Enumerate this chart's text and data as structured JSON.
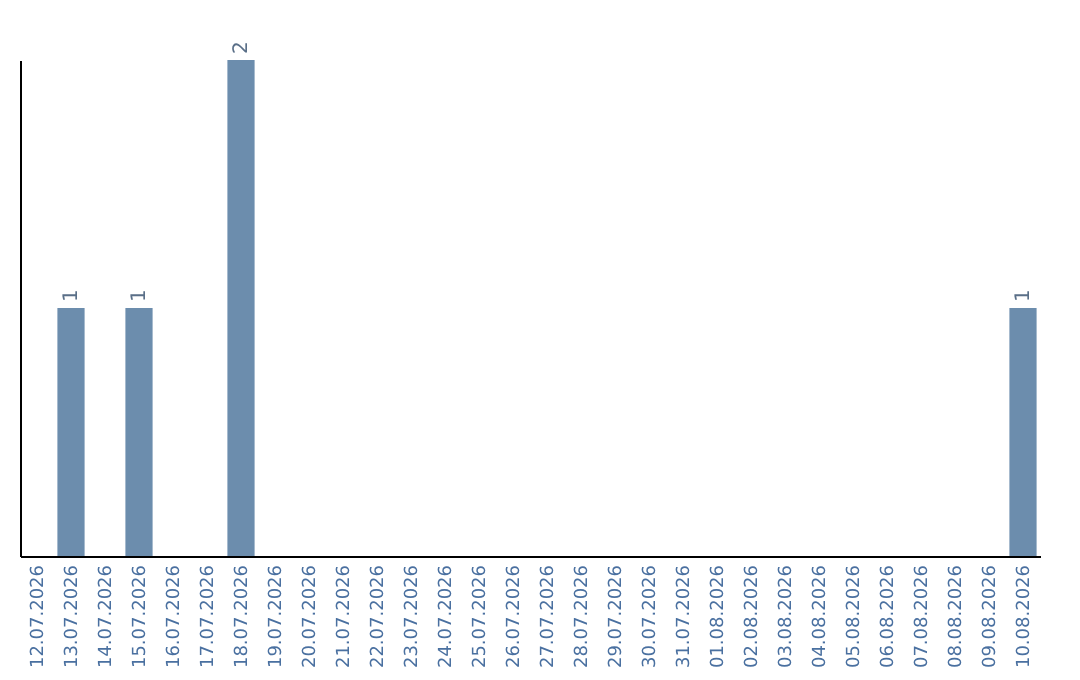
{
  "chart_data": {
    "type": "bar",
    "categories": [
      "12.07.2026",
      "13.07.2026",
      "14.07.2026",
      "15.07.2026",
      "16.07.2026",
      "17.07.2026",
      "18.07.2026",
      "19.07.2026",
      "20.07.2026",
      "21.07.2026",
      "22.07.2026",
      "23.07.2026",
      "24.07.2026",
      "25.07.2026",
      "26.07.2026",
      "27.07.2026",
      "28.07.2026",
      "29.07.2026",
      "30.07.2026",
      "31.07.2026",
      "01.08.2026",
      "02.08.2026",
      "03.08.2026",
      "04.08.2026",
      "05.08.2026",
      "06.08.2026",
      "07.08.2026",
      "08.08.2026",
      "09.08.2026",
      "10.08.2026"
    ],
    "values": [
      0,
      1,
      0,
      1,
      0,
      0,
      2,
      0,
      0,
      0,
      0,
      0,
      0,
      0,
      0,
      0,
      0,
      0,
      0,
      0,
      0,
      0,
      0,
      0,
      0,
      0,
      0,
      0,
      0,
      1
    ],
    "value_labels": [
      null,
      "1",
      null,
      "1",
      null,
      null,
      "2",
      null,
      null,
      null,
      null,
      null,
      null,
      null,
      null,
      null,
      null,
      null,
      null,
      null,
      null,
      null,
      null,
      null,
      null,
      null,
      null,
      null,
      null,
      "1"
    ],
    "color": "#6c8dad",
    "tick_labels": "x",
    "grid": false
  }
}
